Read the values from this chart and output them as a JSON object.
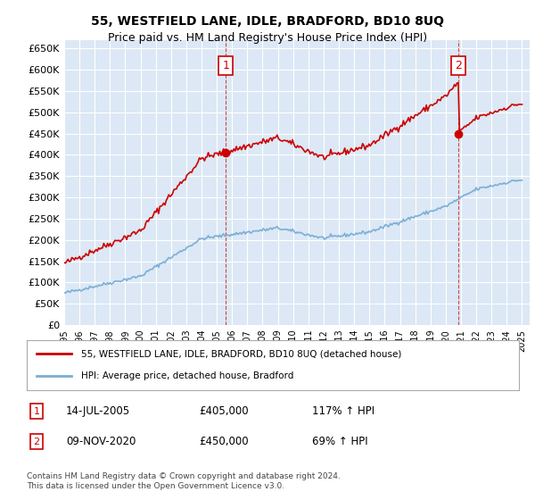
{
  "title": "55, WESTFIELD LANE, IDLE, BRADFORD, BD10 8UQ",
  "subtitle": "Price paid vs. HM Land Registry's House Price Index (HPI)",
  "bg_color": "#dce8f5",
  "hpi_color": "#7bafd4",
  "price_color": "#cc0000",
  "ylim": [
    0,
    670000
  ],
  "yticks": [
    0,
    50000,
    100000,
    150000,
    200000,
    250000,
    300000,
    350000,
    400000,
    450000,
    500000,
    550000,
    600000,
    650000
  ],
  "ytick_labels": [
    "£0",
    "£50K",
    "£100K",
    "£150K",
    "£200K",
    "£250K",
    "£300K",
    "£350K",
    "£400K",
    "£450K",
    "£500K",
    "£550K",
    "£600K",
    "£650K"
  ],
  "sale1_date": "14-JUL-2005",
  "sale1_price": 405000,
  "sale1_pct": "117%",
  "sale2_date": "09-NOV-2020",
  "sale2_price": 450000,
  "sale2_pct": "69%",
  "legend_line1": "55, WESTFIELD LANE, IDLE, BRADFORD, BD10 8UQ (detached house)",
  "legend_line2": "HPI: Average price, detached house, Bradford",
  "footer": "Contains HM Land Registry data © Crown copyright and database right 2024.\nThis data is licensed under the Open Government Licence v3.0.",
  "xstart_year": 1995,
  "xend_year": 2025
}
